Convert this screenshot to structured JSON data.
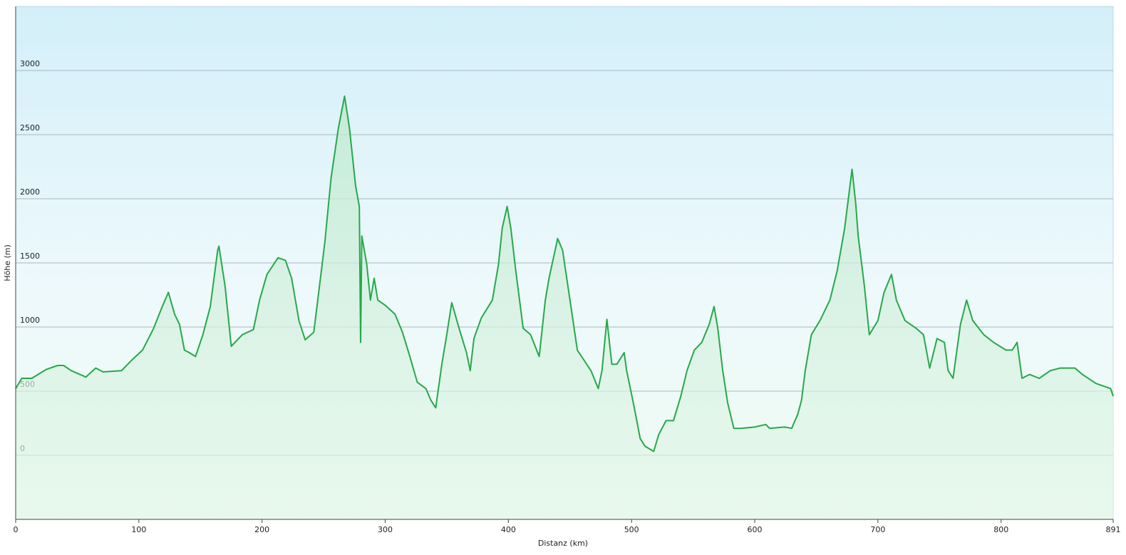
{
  "chart_data": {
    "type": "area",
    "xlabel": "Distanz  (km)",
    "ylabel": "Höhe (m)",
    "x": [
      0,
      5,
      13,
      25,
      34,
      39,
      45,
      57,
      65,
      71,
      86,
      94,
      103,
      112,
      119,
      124,
      129,
      133,
      137,
      141,
      146,
      152,
      158,
      164,
      165,
      170,
      175,
      184,
      193,
      198,
      204,
      213,
      219,
      224,
      230,
      235,
      242,
      246,
      251,
      256,
      262,
      267,
      271,
      276,
      279,
      280,
      281,
      285,
      288,
      291,
      294,
      300,
      308,
      314,
      320,
      326,
      333,
      337,
      341,
      346,
      350,
      354,
      360,
      366,
      369,
      372,
      378,
      387,
      392,
      395,
      399,
      402,
      406,
      412,
      418,
      425,
      430,
      433,
      440,
      444,
      450,
      456,
      467,
      473,
      476,
      480,
      484,
      488,
      494,
      496,
      502,
      507,
      511,
      518,
      522,
      528,
      534,
      540,
      545,
      551,
      557,
      563,
      567,
      570,
      574,
      578,
      583,
      589,
      600,
      609,
      612,
      624,
      630,
      635,
      638,
      641,
      646,
      653,
      661,
      667,
      673,
      679,
      682,
      684,
      689,
      693,
      700,
      705,
      711,
      715,
      722,
      731,
      737,
      742,
      748,
      754,
      757,
      761,
      767,
      772,
      777,
      786,
      794,
      804,
      809,
      813,
      817,
      823,
      831,
      840,
      848,
      860,
      866,
      877,
      889,
      891
    ],
    "values": [
      520,
      600,
      600,
      670,
      700,
      700,
      660,
      610,
      680,
      650,
      660,
      740,
      820,
      990,
      1160,
      1270,
      1100,
      1020,
      820,
      800,
      770,
      940,
      1160,
      1600,
      1630,
      1320,
      850,
      940,
      980,
      1210,
      1410,
      1540,
      1520,
      1380,
      1050,
      900,
      960,
      1270,
      1660,
      2160,
      2550,
      2800,
      2550,
      2100,
      1940,
      880,
      1710,
      1490,
      1210,
      1380,
      1210,
      1170,
      1100,
      960,
      770,
      570,
      520,
      430,
      370,
      710,
      940,
      1190,
      990,
      800,
      660,
      910,
      1070,
      1210,
      1490,
      1770,
      1940,
      1770,
      1440,
      990,
      940,
      770,
      1210,
      1380,
      1690,
      1600,
      1210,
      820,
      660,
      520,
      660,
      1060,
      710,
      710,
      800,
      660,
      380,
      130,
      70,
      30,
      160,
      270,
      270,
      460,
      660,
      820,
      880,
      1020,
      1160,
      990,
      660,
      410,
      210,
      210,
      220,
      240,
      210,
      220,
      210,
      320,
      430,
      660,
      940,
      1050,
      1210,
      1440,
      1770,
      2230,
      1960,
      1710,
      1320,
      940,
      1050,
      1270,
      1410,
      1210,
      1050,
      990,
      940,
      680,
      910,
      880,
      660,
      600,
      1020,
      1210,
      1050,
      940,
      880,
      820,
      820,
      880,
      600,
      630,
      600,
      660,
      680,
      680,
      630,
      560,
      520,
      460
    ],
    "color": "#27a84a",
    "xlim": [
      0,
      891
    ],
    "xticks": [
      0,
      100,
      200,
      300,
      400,
      500,
      600,
      700,
      800,
      891
    ],
    "ylim": [
      -500,
      3500
    ],
    "yticks": [
      0,
      500,
      1000,
      1500,
      2000,
      2500,
      3000
    ],
    "grid": true
  }
}
